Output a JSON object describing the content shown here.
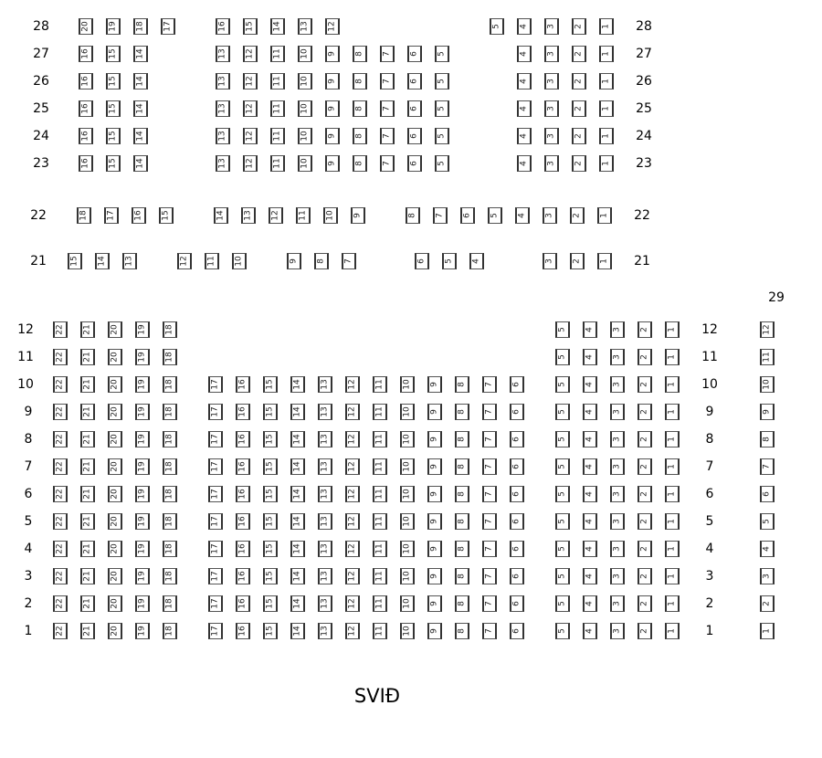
{
  "stage_label": "SVIÐ",
  "section_29_label": "29",
  "upper_rows": [
    {
      "row": "28",
      "groups": [
        [
          20,
          19,
          18,
          17
        ],
        [
          16,
          15,
          14,
          13,
          12
        ],
        [
          5,
          4,
          3,
          2,
          1
        ]
      ]
    },
    {
      "row": "27",
      "groups": [
        [
          16,
          15,
          14
        ],
        [
          13,
          12,
          11,
          10,
          9,
          8,
          7,
          6,
          5
        ],
        [
          4,
          3,
          2,
          1
        ]
      ]
    },
    {
      "row": "26",
      "groups": [
        [
          16,
          15,
          14
        ],
        [
          13,
          12,
          11,
          10,
          9,
          8,
          7,
          6,
          5
        ],
        [
          4,
          3,
          2,
          1
        ]
      ]
    },
    {
      "row": "25",
      "groups": [
        [
          16,
          15,
          14
        ],
        [
          13,
          12,
          11,
          10,
          9,
          8,
          7,
          6,
          5
        ],
        [
          4,
          3,
          2,
          1
        ]
      ]
    },
    {
      "row": "24",
      "groups": [
        [
          16,
          15,
          14
        ],
        [
          13,
          12,
          11,
          10,
          9,
          8,
          7,
          6,
          5
        ],
        [
          4,
          3,
          2,
          1
        ]
      ]
    },
    {
      "row": "23",
      "groups": [
        [
          16,
          15,
          14
        ],
        [
          13,
          12,
          11,
          10,
          9,
          8,
          7,
          6,
          5
        ],
        [
          4,
          3,
          2,
          1
        ]
      ]
    },
    {
      "row": "22",
      "groups": [
        [
          18,
          17,
          16,
          15
        ],
        [
          14,
          13,
          12,
          11,
          10,
          9
        ],
        [
          8,
          7,
          6,
          5,
          4,
          3,
          2,
          1
        ]
      ]
    },
    {
      "row": "21",
      "groups": [
        [
          15,
          14,
          13
        ],
        [
          12,
          11,
          10
        ],
        [
          9,
          8,
          7
        ],
        [
          6,
          5,
          4
        ],
        [
          3,
          2,
          1
        ]
      ]
    }
  ],
  "lower_rows": [
    {
      "row": "12",
      "groups": [
        [
          22,
          21,
          20,
          19,
          18
        ],
        [],
        [
          5,
          4,
          3,
          2,
          1
        ]
      ],
      "section_29_seat": 12
    },
    {
      "row": "11",
      "groups": [
        [
          22,
          21,
          20,
          19,
          18
        ],
        [],
        [
          5,
          4,
          3,
          2,
          1
        ]
      ],
      "section_29_seat": 11
    },
    {
      "row": "10",
      "groups": [
        [
          22,
          21,
          20,
          19,
          18
        ],
        [
          17,
          16,
          15,
          14,
          13,
          12,
          11,
          10,
          9,
          8,
          7,
          6
        ],
        [
          5,
          4,
          3,
          2,
          1
        ]
      ],
      "section_29_seat": 10
    },
    {
      "row": "9",
      "groups": [
        [
          22,
          21,
          20,
          19,
          18
        ],
        [
          17,
          16,
          15,
          14,
          13,
          12,
          11,
          10,
          9,
          8,
          7,
          6
        ],
        [
          5,
          4,
          3,
          2,
          1
        ]
      ],
      "section_29_seat": 9
    },
    {
      "row": "8",
      "groups": [
        [
          22,
          21,
          20,
          19,
          18
        ],
        [
          17,
          16,
          15,
          14,
          13,
          12,
          11,
          10,
          9,
          8,
          7,
          6
        ],
        [
          5,
          4,
          3,
          2,
          1
        ]
      ],
      "section_29_seat": 8
    },
    {
      "row": "7",
      "groups": [
        [
          22,
          21,
          20,
          19,
          18
        ],
        [
          17,
          16,
          15,
          14,
          13,
          12,
          11,
          10,
          9,
          8,
          7,
          6
        ],
        [
          5,
          4,
          3,
          2,
          1
        ]
      ],
      "section_29_seat": 7
    },
    {
      "row": "6",
      "groups": [
        [
          22,
          21,
          20,
          19,
          18
        ],
        [
          17,
          16,
          15,
          14,
          13,
          12,
          11,
          10,
          9,
          8,
          7,
          6
        ],
        [
          5,
          4,
          3,
          2,
          1
        ]
      ],
      "section_29_seat": 6
    },
    {
      "row": "5",
      "groups": [
        [
          22,
          21,
          20,
          19,
          18
        ],
        [
          17,
          16,
          15,
          14,
          13,
          12,
          11,
          10,
          9,
          8,
          7,
          6
        ],
        [
          5,
          4,
          3,
          2,
          1
        ]
      ],
      "section_29_seat": 5
    },
    {
      "row": "4",
      "groups": [
        [
          22,
          21,
          20,
          19,
          18
        ],
        [
          17,
          16,
          15,
          14,
          13,
          12,
          11,
          10,
          9,
          8,
          7,
          6
        ],
        [
          5,
          4,
          3,
          2,
          1
        ]
      ],
      "section_29_seat": 4
    },
    {
      "row": "3",
      "groups": [
        [
          22,
          21,
          20,
          19,
          18
        ],
        [
          17,
          16,
          15,
          14,
          13,
          12,
          11,
          10,
          9,
          8,
          7,
          6
        ],
        [
          5,
          4,
          3,
          2,
          1
        ]
      ],
      "section_29_seat": 3
    },
    {
      "row": "2",
      "groups": [
        [
          22,
          21,
          20,
          19,
          18
        ],
        [
          17,
          16,
          15,
          14,
          13,
          12,
          11,
          10,
          9,
          8,
          7,
          6
        ],
        [
          5,
          4,
          3,
          2,
          1
        ]
      ],
      "section_29_seat": 2
    },
    {
      "row": "1",
      "groups": [
        [
          22,
          21,
          20,
          19,
          18
        ],
        [
          17,
          16,
          15,
          14,
          13,
          12,
          11,
          10,
          9,
          8,
          7,
          6
        ],
        [
          5,
          4,
          3,
          2,
          1
        ]
      ],
      "section_29_seat": 1
    }
  ]
}
